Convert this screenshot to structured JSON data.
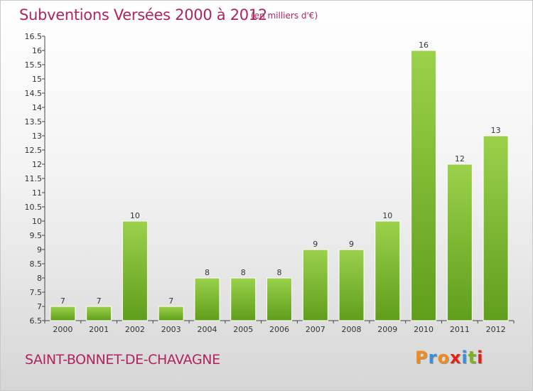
{
  "header": {
    "title": "Subventions Versées 2000 à 2012",
    "unit": "(en milliers d'€)"
  },
  "footer": {
    "commune": "SAINT-BONNET-DE-CHAVAGNE",
    "logo_text": "Proxiti",
    "logo_colors": [
      "#f08a1c",
      "#3a8fd6",
      "#f08a1c",
      "#e2231a",
      "#3a8fd6",
      "#7ab51d",
      "#e2231a"
    ]
  },
  "colors": {
    "title": "#b0235f",
    "bar_light": "#9bd14b",
    "bar_dark": "#5f9e1b"
  },
  "chart_data": {
    "type": "bar",
    "title": "Subventions Versées 2000 à 2012",
    "subtitle": "(en milliers d'€)",
    "categories": [
      "2000",
      "2001",
      "2002",
      "2003",
      "2004",
      "2005",
      "2006",
      "2007",
      "2008",
      "2009",
      "2010",
      "2011",
      "2012"
    ],
    "values": [
      7,
      7,
      10,
      7,
      8,
      8,
      8,
      9,
      9,
      10,
      16,
      12,
      13
    ],
    "data_labels": [
      "7",
      "7",
      "10",
      "7",
      "8",
      "8",
      "8",
      "9",
      "9",
      "10",
      "16",
      "12",
      "13"
    ],
    "y_ticks": [
      "6.5",
      "7",
      "7.5",
      "8",
      "8.5",
      "9",
      "9.5",
      "10",
      "10.5",
      "11",
      "11.5",
      "12",
      "12.5",
      "13",
      "13.5",
      "14",
      "14.5",
      "15",
      "15.5",
      "16",
      "16.5"
    ],
    "ylim": [
      6.5,
      16.5
    ],
    "grid": false,
    "legend": "none"
  }
}
